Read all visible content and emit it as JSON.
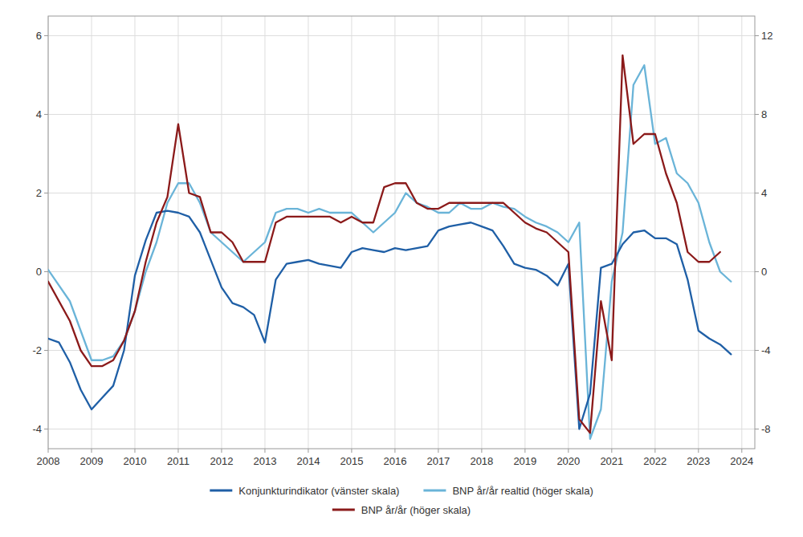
{
  "chart_data": {
    "type": "line",
    "xlim": [
      2008,
      2024.3
    ],
    "xticks": [
      2008,
      2009,
      2010,
      2011,
      2012,
      2013,
      2014,
      2015,
      2016,
      2017,
      2018,
      2019,
      2020,
      2021,
      2022,
      2023,
      2024
    ],
    "ylim": [
      -4.5,
      6.5
    ],
    "yticks": [
      -4,
      -2,
      0,
      2,
      4,
      6
    ],
    "y2lim": [
      -9,
      13
    ],
    "y2ticks": [
      -8,
      -4,
      0,
      4,
      8,
      12
    ],
    "grid": true,
    "legend": "bottom",
    "series": [
      {
        "name": "Konjunkturindikator (vänster skala)",
        "color": "#1f5fa6",
        "x": [
          2008.0,
          2008.25,
          2008.5,
          2008.75,
          2009.0,
          2009.25,
          2009.5,
          2009.75,
          2010.0,
          2010.25,
          2010.5,
          2010.75,
          2011.0,
          2011.25,
          2011.5,
          2011.75,
          2012.0,
          2012.25,
          2012.5,
          2012.75,
          2013.0,
          2013.25,
          2013.5,
          2013.75,
          2014.0,
          2014.25,
          2014.5,
          2014.75,
          2015.0,
          2015.25,
          2015.5,
          2015.75,
          2016.0,
          2016.25,
          2016.5,
          2016.75,
          2017.0,
          2017.25,
          2017.5,
          2017.75,
          2018.0,
          2018.25,
          2018.5,
          2018.75,
          2019.0,
          2019.25,
          2019.5,
          2019.75,
          2020.0,
          2020.25,
          2020.5,
          2020.75,
          2021.0,
          2021.25,
          2021.5,
          2021.75,
          2022.0,
          2022.25,
          2022.5,
          2022.75,
          2023.0,
          2023.25,
          2023.5,
          2023.75
        ],
        "values": [
          -1.7,
          -1.8,
          -2.3,
          -3.0,
          -3.5,
          -3.2,
          -2.9,
          -2.0,
          -0.1,
          0.8,
          1.5,
          1.55,
          1.5,
          1.4,
          1.0,
          0.3,
          -0.4,
          -0.8,
          -0.9,
          -1.1,
          -1.8,
          -0.2,
          0.2,
          0.25,
          0.3,
          0.2,
          0.15,
          0.1,
          0.5,
          0.6,
          0.55,
          0.5,
          0.6,
          0.55,
          0.6,
          0.65,
          1.05,
          1.15,
          1.2,
          1.25,
          1.15,
          1.05,
          0.65,
          0.2,
          0.1,
          0.05,
          -0.1,
          -0.35,
          0.2,
          -4.0,
          -3.1,
          0.1,
          0.2,
          0.7,
          1.0,
          1.05,
          0.85,
          0.85,
          0.7,
          -0.2,
          -1.5,
          -1.7,
          -1.85,
          -2.1
        ]
      },
      {
        "name": "BNP år/år realtid (höger skala)",
        "color": "#6ab4d8",
        "axis": "y2",
        "x": [
          2008.0,
          2008.5,
          2008.75,
          2009.0,
          2009.25,
          2009.5,
          2009.75,
          2010.0,
          2010.25,
          2010.5,
          2010.75,
          2011.0,
          2011.25,
          2011.5,
          2011.75,
          2012.0,
          2012.25,
          2012.5,
          2012.75,
          2013.0,
          2013.25,
          2013.5,
          2013.75,
          2014.0,
          2014.25,
          2014.5,
          2014.75,
          2015.0,
          2015.25,
          2015.5,
          2015.75,
          2016.0,
          2016.25,
          2016.5,
          2016.75,
          2017.0,
          2017.25,
          2017.5,
          2017.75,
          2018.0,
          2018.25,
          2018.5,
          2018.75,
          2019.0,
          2019.25,
          2019.5,
          2019.75,
          2020.0,
          2020.25,
          2020.5,
          2020.75,
          2021.0,
          2021.25,
          2021.5,
          2021.75,
          2022.0,
          2022.25,
          2022.5,
          2022.75,
          2023.0,
          2023.25,
          2023.5,
          2023.75
        ],
        "values": [
          0.1,
          -1.5,
          -3.0,
          -4.5,
          -4.5,
          -4.3,
          -3.5,
          -2.0,
          0.0,
          1.5,
          3.5,
          4.5,
          4.5,
          3.5,
          2.0,
          1.5,
          1.0,
          0.5,
          1.0,
          1.5,
          3.0,
          3.2,
          3.2,
          3.0,
          3.2,
          3.0,
          3.0,
          3.0,
          2.5,
          2.0,
          2.5,
          3.0,
          4.0,
          3.5,
          3.3,
          3.0,
          3.0,
          3.5,
          3.2,
          3.2,
          3.5,
          3.3,
          3.2,
          2.8,
          2.5,
          2.3,
          2.0,
          1.5,
          2.5,
          -8.5,
          -7.0,
          -0.5,
          2.0,
          9.5,
          10.5,
          6.5,
          6.8,
          5.0,
          4.5,
          3.5,
          1.5,
          0.0,
          -0.5
        ]
      },
      {
        "name": "BNP år/år (höger skala)",
        "color": "#8b1a1a",
        "axis": "y2",
        "x": [
          2008.0,
          2008.5,
          2008.75,
          2009.0,
          2009.25,
          2009.5,
          2009.75,
          2010.0,
          2010.25,
          2010.5,
          2010.75,
          2011.0,
          2011.25,
          2011.5,
          2011.75,
          2012.0,
          2012.25,
          2012.5,
          2012.75,
          2013.0,
          2013.25,
          2013.5,
          2013.75,
          2014.0,
          2014.25,
          2014.5,
          2014.75,
          2015.0,
          2015.25,
          2015.5,
          2015.75,
          2016.0,
          2016.25,
          2016.5,
          2016.75,
          2017.0,
          2017.25,
          2017.5,
          2017.75,
          2018.0,
          2018.25,
          2018.5,
          2018.75,
          2019.0,
          2019.25,
          2019.5,
          2019.75,
          2020.0,
          2020.25,
          2020.5,
          2020.75,
          2021.0,
          2021.25,
          2021.5,
          2021.75,
          2022.0,
          2022.25,
          2022.5,
          2022.75,
          2023.0,
          2023.25,
          2023.5
        ],
        "values": [
          -0.5,
          -2.5,
          -4.0,
          -4.8,
          -4.8,
          -4.5,
          -3.5,
          -2.0,
          0.5,
          2.5,
          3.8,
          7.5,
          4.0,
          3.8,
          2.0,
          2.0,
          1.5,
          0.5,
          0.5,
          0.5,
          2.5,
          2.8,
          2.8,
          2.8,
          2.8,
          2.8,
          2.5,
          2.8,
          2.5,
          2.5,
          4.3,
          4.5,
          4.5,
          3.5,
          3.2,
          3.2,
          3.5,
          3.5,
          3.5,
          3.5,
          3.5,
          3.5,
          3.0,
          2.5,
          2.2,
          2.0,
          1.5,
          1.0,
          -7.5,
          -8.2,
          -1.5,
          -4.5,
          11.0,
          6.5,
          7.0,
          7.0,
          5.0,
          3.5,
          1.0,
          0.5,
          0.5,
          1.0
        ]
      }
    ]
  }
}
